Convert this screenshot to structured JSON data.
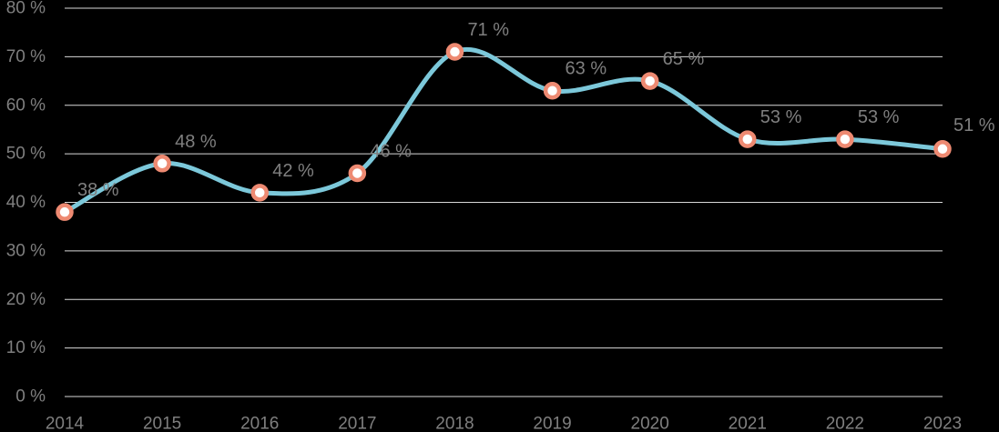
{
  "chart_data": {
    "type": "line",
    "title": "",
    "xlabel": "",
    "ylabel": "",
    "categories": [
      "2014",
      "2015",
      "2016",
      "2017",
      "2018",
      "2019",
      "2020",
      "2021",
      "2022",
      "2023"
    ],
    "values": [
      38,
      48,
      42,
      46,
      71,
      63,
      65,
      53,
      53,
      51
    ],
    "data_labels": [
      "38 %",
      "48 %",
      "42 %",
      "46 %",
      "71 %",
      "63 %",
      "65 %",
      "53 %",
      "53 %",
      "51 %"
    ],
    "y_ticks": [
      "0 %",
      "10 %",
      "20 %",
      "30 %",
      "40 %",
      "50 %",
      "60 %",
      "70 %",
      "80 %"
    ],
    "ylim": [
      0,
      80
    ],
    "grid": true,
    "legend": "none",
    "colors": {
      "background": "#000000",
      "line": "#7cc8da",
      "marker_edge": "#ee8a72",
      "marker_fill": "#ffffff",
      "gridline": "#d9d9d9",
      "text": "#7f7f7f"
    }
  }
}
